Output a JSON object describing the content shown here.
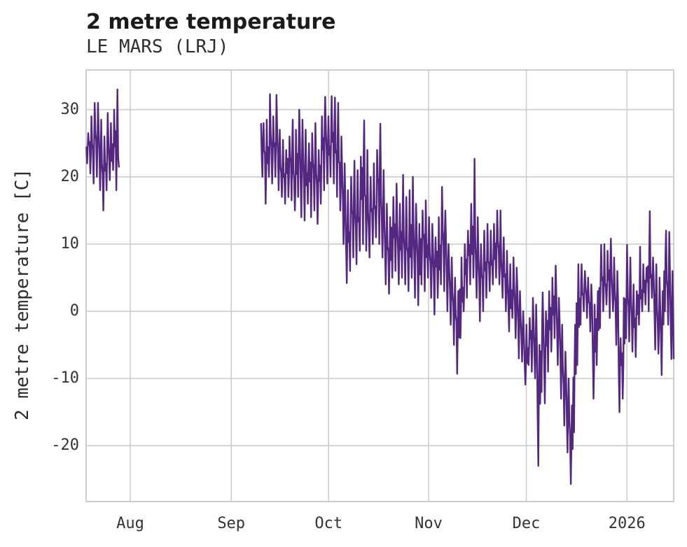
{
  "chart_data": {
    "type": "line",
    "title": "2 metre temperature",
    "subtitle": "LE MARS (LRJ)",
    "ylabel": "2 metre temperature [C]",
    "xlabel": "",
    "legend": null,
    "grid": true,
    "line_color": "#542780",
    "grid_color": "#cdcdcd",
    "text_color": "#2e2e2e",
    "background_color": "#ffffff",
    "ylim": [
      -28.3,
      35.9
    ],
    "xlim_days": [
      0,
      181
    ],
    "yticks": [
      {
        "label": "30",
        "value": 30
      },
      {
        "label": "20",
        "value": 20
      },
      {
        "label": "10",
        "value": 10
      },
      {
        "label": "0",
        "value": 0
      },
      {
        "label": "-10",
        "value": -10
      },
      {
        "label": "-20",
        "value": -20
      }
    ],
    "xticks": [
      {
        "label": "Aug",
        "day": 13.6
      },
      {
        "label": "Sep",
        "day": 44.7
      },
      {
        "label": "Oct",
        "day": 74.7
      },
      {
        "label": "Nov",
        "day": 105.5
      },
      {
        "label": "Dec",
        "day": 135.6
      },
      {
        "label": "2026",
        "day": 166.6
      }
    ],
    "series_name": "2 metre temperature",
    "units": "C",
    "segments": [
      {
        "name": "late-july-segment",
        "daily_envelope": [
          [
            0,
            22,
            26.5
          ],
          [
            1,
            20.5,
            29
          ],
          [
            2,
            19,
            31
          ],
          [
            3,
            20,
            31
          ],
          [
            4,
            18,
            28.5
          ],
          [
            5,
            15,
            26
          ],
          [
            6,
            18,
            29.5
          ],
          [
            7,
            19.5,
            28
          ],
          [
            8,
            21,
            30
          ],
          [
            9,
            18,
            33
          ],
          [
            10.1,
            21.5,
            21.5
          ]
        ]
      },
      {
        "name": "sep-to-jan-segment",
        "daily_envelope": [
          [
            53.9,
            27.9,
            27.9
          ],
          [
            54,
            20,
            28
          ],
          [
            55,
            16,
            28.5
          ],
          [
            56,
            20,
            32.3
          ],
          [
            57,
            19,
            29
          ],
          [
            58,
            20,
            32.2
          ],
          [
            59,
            18,
            27
          ],
          [
            60,
            17,
            25.5
          ],
          [
            61,
            16,
            24
          ],
          [
            62,
            17,
            26
          ],
          [
            63,
            16.5,
            28.5
          ],
          [
            64,
            15,
            27
          ],
          [
            65,
            17,
            30
          ],
          [
            66,
            14,
            28.5
          ],
          [
            67,
            13.5,
            27
          ],
          [
            68,
            16,
            25
          ],
          [
            69,
            14,
            26.5
          ],
          [
            70,
            15,
            28
          ],
          [
            71,
            13,
            24
          ],
          [
            72,
            16,
            29
          ],
          [
            73,
            18,
            31.9
          ],
          [
            74,
            19,
            29
          ],
          [
            75,
            20,
            32
          ],
          [
            76,
            19,
            31.8
          ],
          [
            77,
            17,
            31
          ],
          [
            78,
            15,
            26
          ],
          [
            79,
            10,
            22
          ],
          [
            80,
            4.2,
            18
          ],
          [
            81,
            6,
            20
          ],
          [
            82,
            8,
            22.4
          ],
          [
            83,
            7,
            21
          ],
          [
            84,
            9,
            23
          ],
          [
            85,
            10,
            28.4
          ],
          [
            86,
            9,
            24
          ],
          [
            87,
            8,
            20
          ],
          [
            88,
            10,
            22
          ],
          [
            89,
            11,
            24
          ],
          [
            90,
            10,
            27.9
          ],
          [
            91,
            8,
            21
          ],
          [
            92,
            4,
            16
          ],
          [
            93,
            2.6,
            14
          ],
          [
            94,
            5,
            17
          ],
          [
            95,
            6,
            19
          ],
          [
            96,
            4,
            16
          ],
          [
            97,
            5,
            20.3
          ],
          [
            98,
            4,
            17
          ],
          [
            99,
            3,
            18
          ],
          [
            100,
            5,
            20
          ],
          [
            101,
            2,
            16
          ],
          [
            102,
            0.9,
            13
          ],
          [
            103,
            4,
            15
          ],
          [
            104,
            3,
            16.5
          ],
          [
            105,
            5,
            14
          ],
          [
            106,
            2,
            13
          ],
          [
            107,
            -0.5,
            11
          ],
          [
            108,
            2,
            14
          ],
          [
            109,
            4,
            18.5
          ],
          [
            110,
            3,
            15
          ],
          [
            111,
            0,
            10
          ],
          [
            112,
            -2,
            8
          ],
          [
            113,
            -5,
            5
          ],
          [
            114,
            -9.3,
            3
          ],
          [
            115,
            -4,
            8
          ],
          [
            116,
            0,
            10
          ],
          [
            117,
            2,
            12
          ],
          [
            118,
            4,
            16
          ],
          [
            119,
            5,
            22.7
          ],
          [
            120,
            2,
            14
          ],
          [
            121,
            -1.5,
            10
          ],
          [
            122,
            0,
            12
          ],
          [
            123,
            2,
            13
          ],
          [
            124,
            3,
            12
          ],
          [
            125,
            4,
            13
          ],
          [
            126,
            5,
            15
          ],
          [
            127,
            4,
            15
          ],
          [
            128,
            2,
            11
          ],
          [
            129,
            0,
            9
          ],
          [
            130,
            -3,
            7
          ],
          [
            131,
            -1,
            8
          ],
          [
            132,
            -4,
            6.5
          ],
          [
            133,
            -7,
            3
          ],
          [
            134,
            -7.5,
            0
          ],
          [
            135,
            -10.9,
            -2
          ],
          [
            136,
            -8,
            -1
          ],
          [
            137,
            -9,
            2
          ],
          [
            138,
            -10,
            1
          ],
          [
            139,
            -23,
            -5
          ],
          [
            140,
            -12,
            2.8
          ],
          [
            141,
            -13.7,
            0
          ],
          [
            142,
            -9,
            3
          ],
          [
            143,
            -6,
            5
          ],
          [
            144,
            -4,
            6.8
          ],
          [
            145,
            -8,
            2
          ],
          [
            146,
            -13,
            -2
          ],
          [
            147,
            -17,
            -6
          ],
          [
            148,
            -21,
            -10
          ],
          [
            149,
            -25.7,
            -14
          ],
          [
            150,
            -18,
            -2
          ],
          [
            151,
            -8,
            7
          ],
          [
            152,
            -2,
            7
          ],
          [
            153,
            0,
            6
          ],
          [
            154,
            -1,
            5
          ],
          [
            155,
            -3,
            4
          ],
          [
            156,
            -13,
            1
          ],
          [
            157,
            -8,
            3
          ],
          [
            158,
            -2.5,
            9.9
          ],
          [
            159,
            0,
            10
          ],
          [
            160,
            1,
            9
          ],
          [
            161,
            -1,
            10.8
          ],
          [
            162,
            0,
            8
          ],
          [
            163,
            -5,
            6
          ],
          [
            164,
            -15,
            -4
          ],
          [
            165,
            -13,
            2
          ],
          [
            166,
            -4,
            9.9
          ],
          [
            167,
            -4.5,
            8
          ],
          [
            168,
            -6,
            4
          ],
          [
            169,
            -6.8,
            3
          ],
          [
            170,
            -2,
            9.6
          ],
          [
            171,
            0,
            7
          ],
          [
            172,
            1,
            6.5
          ],
          [
            173,
            0,
            14.9
          ],
          [
            174,
            2,
            8
          ],
          [
            175,
            -5.7,
            7
          ],
          [
            176,
            -6.3,
            5
          ],
          [
            177,
            -9.5,
            3
          ],
          [
            178,
            0,
            12
          ],
          [
            179,
            -2,
            11.8
          ],
          [
            180,
            -7.1,
            6
          ],
          [
            181,
            -7,
            -7
          ]
        ]
      }
    ],
    "render_hints": {
      "noise_seed": 42,
      "noise_amp": 0.22,
      "line_width": 2.4,
      "grid_width": 1.6,
      "border_width": 2
    }
  }
}
